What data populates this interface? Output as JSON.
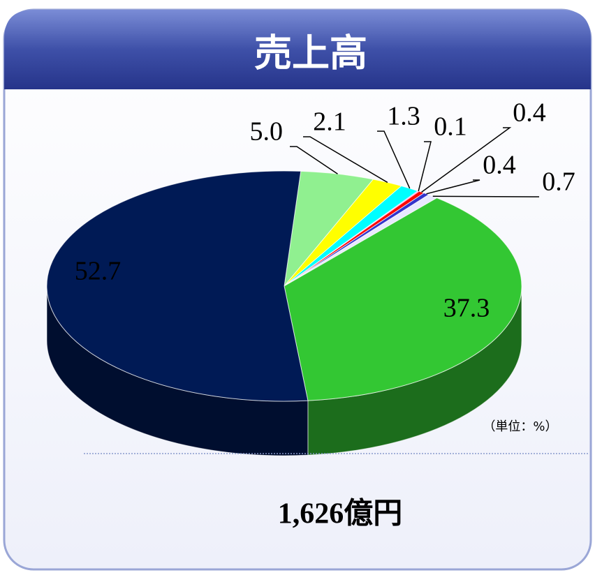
{
  "chart_data": {
    "type": "pie3d",
    "title": "売上高",
    "unit_note": "（単位：%）",
    "total": "1,626億円",
    "categories": [
      null,
      null,
      null,
      null,
      null,
      null,
      null,
      null,
      null
    ],
    "values": [
      5.0,
      2.1,
      1.3,
      0.1,
      0.4,
      0.4,
      0.7,
      37.3,
      52.7
    ],
    "value_labels": [
      "5.0",
      "2.1",
      "1.3",
      "0.1",
      "0.4",
      "0.4",
      "0.7",
      "37.3",
      "52.7"
    ],
    "colors": [
      "#90f090",
      "#ffff00",
      "#00ffff",
      "#ff66ff",
      "#ff0000",
      "#3333cc",
      "#e8e8ff",
      "#33c733",
      "#001a55"
    ]
  }
}
